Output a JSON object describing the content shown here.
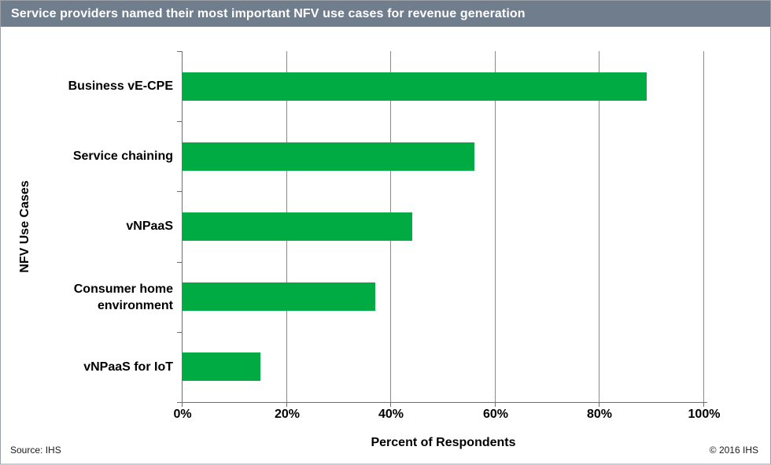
{
  "title_bar": {
    "text": "Service providers named their most important NFV use cases for revenue generation",
    "bg_color": "#6F7D8C",
    "fg_color": "#FFFFFF"
  },
  "footer": {
    "source": "Source: IHS",
    "copyright": "© 2016 IHS"
  },
  "chart_data": {
    "type": "bar",
    "orientation": "horizontal",
    "title": "Service providers named their most important NFV use cases for revenue generation",
    "categories": [
      "Business vE-CPE",
      "Service chaining",
      "vNPaaS",
      "Consumer home environment",
      "vNPaaS for IoT"
    ],
    "values": [
      89,
      56,
      44,
      37,
      15
    ],
    "xlabel": "Percent of Respondents",
    "ylabel": "NFV Use Cases",
    "xlim": [
      0,
      100
    ],
    "xticks": [
      0,
      20,
      40,
      60,
      80,
      100
    ],
    "xtick_labels": [
      "0%",
      "20%",
      "40%",
      "60%",
      "80%",
      "100%"
    ],
    "bar_color": "#00AB44",
    "gridline_color": "#8a8a8a",
    "grid": true,
    "legend": false
  }
}
